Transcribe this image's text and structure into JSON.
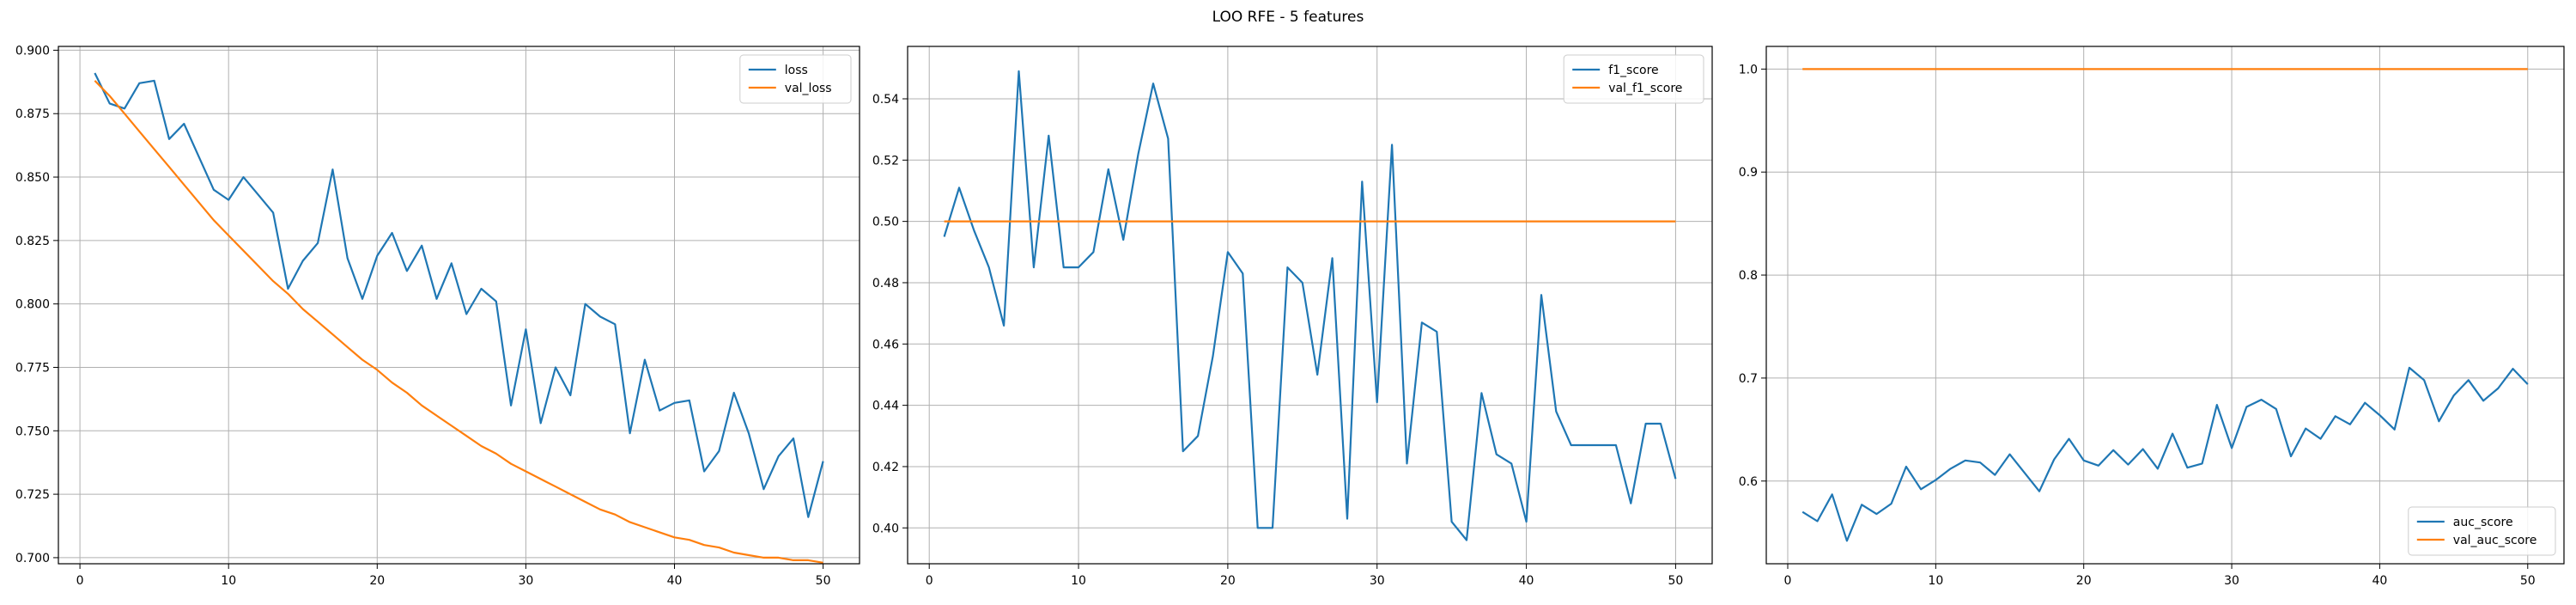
{
  "figure": {
    "title": "LOO RFE - 5 features"
  },
  "colors": {
    "train": "#1f77b4",
    "val": "#ff7f0e",
    "grid": "#b0b0b0",
    "axis": "#000000"
  },
  "chart_data": [
    {
      "type": "line",
      "title": "",
      "xlabel": "",
      "ylabel": "",
      "grid": true,
      "legend_position": "top-right",
      "xlim": [
        -1.45,
        52.45
      ],
      "ylim": [
        0.6976,
        0.9015
      ],
      "xticks": [
        0,
        10,
        20,
        30,
        40,
        50
      ],
      "xtick_labels": [
        "0",
        "10",
        "20",
        "30",
        "40",
        "50"
      ],
      "yticks": [
        0.7,
        0.725,
        0.75,
        0.775,
        0.8,
        0.825,
        0.85,
        0.875,
        0.9
      ],
      "ytick_labels": [
        "0.700",
        "0.725",
        "0.750",
        "0.775",
        "0.800",
        "0.825",
        "0.850",
        "0.875",
        "0.900"
      ],
      "x": [
        1,
        2,
        3,
        4,
        5,
        6,
        7,
        8,
        9,
        10,
        11,
        12,
        13,
        14,
        15,
        16,
        17,
        18,
        19,
        20,
        21,
        22,
        23,
        24,
        25,
        26,
        27,
        28,
        29,
        30,
        31,
        32,
        33,
        34,
        35,
        36,
        37,
        38,
        39,
        40,
        41,
        42,
        43,
        44,
        45,
        46,
        47,
        48,
        49,
        50
      ],
      "series": [
        {
          "name": "loss",
          "color": "#1f77b4",
          "values": [
            0.891,
            0.879,
            0.877,
            0.887,
            0.888,
            0.865,
            0.871,
            0.858,
            0.845,
            0.841,
            0.85,
            0.843,
            0.836,
            0.806,
            0.817,
            0.824,
            0.853,
            0.818,
            0.802,
            0.819,
            0.828,
            0.813,
            0.823,
            0.802,
            0.816,
            0.796,
            0.806,
            0.801,
            0.76,
            0.79,
            0.753,
            0.775,
            0.764,
            0.8,
            0.795,
            0.792,
            0.749,
            0.778,
            0.758,
            0.761,
            0.762,
            0.734,
            0.742,
            0.765,
            0.749,
            0.727,
            0.74,
            0.747,
            0.716,
            0.738
          ]
        },
        {
          "name": "val_loss",
          "color": "#ff7f0e",
          "values": [
            0.888,
            0.882,
            0.875,
            0.868,
            0.861,
            0.854,
            0.847,
            0.84,
            0.833,
            0.827,
            0.821,
            0.815,
            0.809,
            0.804,
            0.798,
            0.793,
            0.788,
            0.783,
            0.778,
            0.774,
            0.769,
            0.765,
            0.76,
            0.756,
            0.752,
            0.748,
            0.744,
            0.741,
            0.737,
            0.734,
            0.731,
            0.728,
            0.725,
            0.722,
            0.719,
            0.717,
            0.714,
            0.712,
            0.71,
            0.708,
            0.707,
            0.705,
            0.704,
            0.702,
            0.701,
            0.7,
            0.7,
            0.699,
            0.699,
            0.698
          ]
        }
      ]
    },
    {
      "type": "line",
      "title": "",
      "xlabel": "",
      "ylabel": "",
      "grid": true,
      "legend_position": "top-right",
      "xlim": [
        -1.45,
        52.45
      ],
      "ylim": [
        0.3883,
        0.5571
      ],
      "xticks": [
        0,
        10,
        20,
        30,
        40,
        50
      ],
      "xtick_labels": [
        "0",
        "10",
        "20",
        "30",
        "40",
        "50"
      ],
      "yticks": [
        0.4,
        0.42,
        0.44,
        0.46,
        0.48,
        0.5,
        0.52,
        0.54
      ],
      "ytick_labels": [
        "0.40",
        "0.42",
        "0.44",
        "0.46",
        "0.48",
        "0.50",
        "0.52",
        "0.54"
      ],
      "x": [
        1,
        2,
        3,
        4,
        5,
        6,
        7,
        8,
        9,
        10,
        11,
        12,
        13,
        14,
        15,
        16,
        17,
        18,
        19,
        20,
        21,
        22,
        23,
        24,
        25,
        26,
        27,
        28,
        29,
        30,
        31,
        32,
        33,
        34,
        35,
        36,
        37,
        38,
        39,
        40,
        41,
        42,
        43,
        44,
        45,
        46,
        47,
        48,
        49,
        50
      ],
      "series": [
        {
          "name": "f1_score",
          "color": "#1f77b4",
          "values": [
            0.495,
            0.511,
            0.497,
            0.485,
            0.466,
            0.549,
            0.485,
            0.528,
            0.485,
            0.485,
            0.49,
            0.517,
            0.494,
            0.522,
            0.545,
            0.527,
            0.425,
            0.43,
            0.456,
            0.49,
            0.483,
            0.4,
            0.4,
            0.485,
            0.48,
            0.45,
            0.488,
            0.403,
            0.513,
            0.441,
            0.525,
            0.421,
            0.467,
            0.464,
            0.402,
            0.396,
            0.444,
            0.424,
            0.421,
            0.402,
            0.476,
            0.438,
            0.427,
            0.427,
            0.427,
            0.427,
            0.408,
            0.434,
            0.434,
            0.416
          ]
        },
        {
          "name": "val_f1_score",
          "color": "#ff7f0e",
          "values": [
            0.5,
            0.5,
            0.5,
            0.5,
            0.5,
            0.5,
            0.5,
            0.5,
            0.5,
            0.5,
            0.5,
            0.5,
            0.5,
            0.5,
            0.5,
            0.5,
            0.5,
            0.5,
            0.5,
            0.5,
            0.5,
            0.5,
            0.5,
            0.5,
            0.5,
            0.5,
            0.5,
            0.5,
            0.5,
            0.5,
            0.5,
            0.5,
            0.5,
            0.5,
            0.5,
            0.5,
            0.5,
            0.5,
            0.5,
            0.5,
            0.5,
            0.5,
            0.5,
            0.5,
            0.5,
            0.5,
            0.5,
            0.5,
            0.5,
            0.5
          ]
        }
      ]
    },
    {
      "type": "line",
      "title": "",
      "xlabel": "",
      "ylabel": "",
      "grid": true,
      "legend_position": "bottom-right",
      "xlim": [
        -1.45,
        52.45
      ],
      "ylim": [
        0.5197,
        1.022
      ],
      "xticks": [
        0,
        10,
        20,
        30,
        40,
        50
      ],
      "xtick_labels": [
        "0",
        "10",
        "20",
        "30",
        "40",
        "50"
      ],
      "yticks": [
        0.6,
        0.7,
        0.8,
        0.9,
        1.0
      ],
      "ytick_labels": [
        "0.6",
        "0.7",
        "0.8",
        "0.9",
        "1.0"
      ],
      "x": [
        1,
        2,
        3,
        4,
        5,
        6,
        7,
        8,
        9,
        10,
        11,
        12,
        13,
        14,
        15,
        16,
        17,
        18,
        19,
        20,
        21,
        22,
        23,
        24,
        25,
        26,
        27,
        28,
        29,
        30,
        31,
        32,
        33,
        34,
        35,
        36,
        37,
        38,
        39,
        40,
        41,
        42,
        43,
        44,
        45,
        46,
        47,
        48,
        49,
        50
      ],
      "series": [
        {
          "name": "auc_score",
          "color": "#1f77b4",
          "values": [
            0.57,
            0.561,
            0.587,
            0.542,
            0.577,
            0.568,
            0.578,
            0.614,
            0.592,
            0.601,
            0.612,
            0.62,
            0.618,
            0.606,
            0.626,
            0.608,
            0.59,
            0.621,
            0.641,
            0.62,
            0.615,
            0.63,
            0.616,
            0.631,
            0.612,
            0.646,
            0.613,
            0.617,
            0.674,
            0.632,
            0.672,
            0.679,
            0.67,
            0.624,
            0.651,
            0.641,
            0.663,
            0.655,
            0.676,
            0.664,
            0.65,
            0.71,
            0.698,
            0.658,
            0.683,
            0.698,
            0.678,
            0.69,
            0.709,
            0.694
          ]
        },
        {
          "name": "val_auc_score",
          "color": "#ff7f0e",
          "values": [
            1.0,
            1.0,
            1.0,
            1.0,
            1.0,
            1.0,
            1.0,
            1.0,
            1.0,
            1.0,
            1.0,
            1.0,
            1.0,
            1.0,
            1.0,
            1.0,
            1.0,
            1.0,
            1.0,
            1.0,
            1.0,
            1.0,
            1.0,
            1.0,
            1.0,
            1.0,
            1.0,
            1.0,
            1.0,
            1.0,
            1.0,
            1.0,
            1.0,
            1.0,
            1.0,
            1.0,
            1.0,
            1.0,
            1.0,
            1.0,
            1.0,
            1.0,
            1.0,
            1.0,
            1.0,
            1.0,
            1.0,
            1.0,
            1.0,
            1.0
          ]
        }
      ]
    }
  ]
}
